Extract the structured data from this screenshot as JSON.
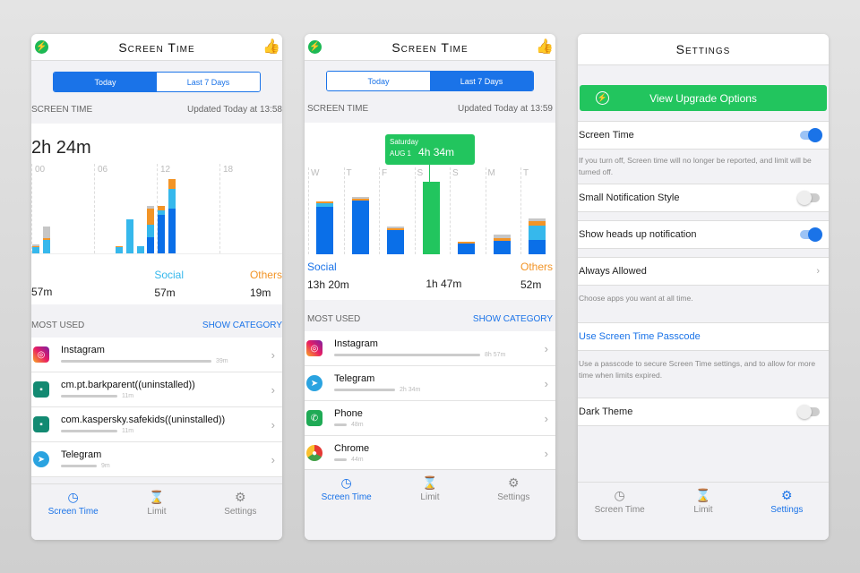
{
  "colors": {
    "primary": "#1a73e8",
    "social_dark": "#0a6fe8",
    "social_light": "#36b8ec",
    "others": "#f29427",
    "other_gray": "#c6c6c6",
    "green": "#22c55e"
  },
  "phone1": {
    "title": "Screen Time",
    "tabs": [
      "Today",
      "Last 7 Days"
    ],
    "active_tab": "Today",
    "section": "SCREEN TIME",
    "updated": "Updated Today at 13:58",
    "total": "2h 24m",
    "hour_labels": [
      "00",
      "06",
      "12",
      "18"
    ],
    "hourly_minutes": [
      {
        "hour": 0,
        "dark": 0,
        "light": 4,
        "orange": 1,
        "gray": 1
      },
      {
        "hour": 1,
        "dark": 0,
        "light": 9,
        "orange": 1,
        "gray": 8
      },
      {
        "hour": 8,
        "dark": 0,
        "light": 4,
        "orange": 1,
        "gray": 0
      },
      {
        "hour": 9,
        "dark": 0,
        "light": 23,
        "orange": 0,
        "gray": 0
      },
      {
        "hour": 10,
        "dark": 0,
        "light": 5,
        "orange": 0,
        "gray": 0
      },
      {
        "hour": 11,
        "dark": 11,
        "light": 8,
        "orange": 11,
        "gray": 2
      },
      {
        "hour": 12,
        "dark": 26,
        "light": 3,
        "orange": 3,
        "gray": 0
      },
      {
        "hour": 13,
        "dark": 30,
        "light": 13,
        "orange": 7,
        "gray": 0
      }
    ],
    "legend": [
      {
        "label": "",
        "value": "57m"
      },
      {
        "label": "Social",
        "value": "57m"
      },
      {
        "label": "Others",
        "value": "19m"
      }
    ],
    "most_used": "MOST USED",
    "show_category": "SHOW CATEGORY",
    "apps": [
      {
        "name": "Instagram",
        "time": "39m",
        "icon": "instagram-icon"
      },
      {
        "name": "cm.pt.barkparent((uninstalled))",
        "time": "11m",
        "icon": "android-icon"
      },
      {
        "name": "com.kaspersky.safekids((uninstalled))",
        "time": "11m",
        "icon": "android-icon"
      },
      {
        "name": "Telegram",
        "time": "9m",
        "icon": "telegram-icon"
      }
    ]
  },
  "phone2": {
    "title": "Screen Time",
    "tabs": [
      "Today",
      "Last 7 Days"
    ],
    "active_tab": "Last 7 Days",
    "section": "SCREEN TIME",
    "updated": "Updated Today at 13:59",
    "days": [
      "W",
      "T",
      "F",
      "S",
      "S",
      "M",
      "T"
    ],
    "daily_hours": [
      {
        "dark": 3.0,
        "light": 0.2,
        "orange": 0.05,
        "gray": 0
      },
      {
        "dark": 3.4,
        "light": 0,
        "orange": 0.1,
        "gray": 0.1
      },
      {
        "dark": 1.5,
        "light": 0,
        "orange": 0.05,
        "gray": 0.15
      },
      {
        "total": 4.57,
        "selected": true
      },
      {
        "dark": 0.7,
        "light": 0,
        "orange": 0.1,
        "gray": 0
      },
      {
        "dark": 0.85,
        "light": 0,
        "orange": 0.15,
        "gray": 0.25
      },
      {
        "dark": 0.9,
        "light": 0.9,
        "orange": 0.3,
        "gray": 0.15
      }
    ],
    "tooltip": {
      "day": "Saturday",
      "date": "AUG 1",
      "value": "4h 34m"
    },
    "legend": [
      {
        "label": "Social",
        "value": "13h 20m"
      },
      {
        "label": "",
        "value": "1h 47m"
      },
      {
        "label": "Others",
        "value": "52m"
      }
    ],
    "most_used": "MOST USED",
    "show_category": "SHOW CATEGORY",
    "apps": [
      {
        "name": "Instagram",
        "time": "8h 57m",
        "icon": "instagram-icon"
      },
      {
        "name": "Telegram",
        "time": "2h 34m",
        "icon": "telegram-icon"
      },
      {
        "name": "Phone",
        "time": "48m",
        "icon": "phone-icon"
      },
      {
        "name": "Chrome",
        "time": "44m",
        "icon": "chrome-icon"
      }
    ]
  },
  "phone3": {
    "title": "Settings",
    "upgrade": "View Upgrade Options",
    "screen_time": {
      "label": "Screen Time",
      "on": true,
      "note": "If you turn off, Screen time will no longer be reported, and limit will be turned off."
    },
    "small_notif": {
      "label": "Small Notification Style",
      "on": false
    },
    "heads_up": {
      "label": "Show heads up notification",
      "on": true
    },
    "always_allowed": {
      "label": "Always Allowed",
      "note": "Choose apps you want at all time."
    },
    "passcode": {
      "label": "Use Screen Time Passcode",
      "note": "Use a passcode to secure Screen Time settings, and to allow for more time when limits expired."
    },
    "dark_theme": {
      "label": "Dark Theme",
      "on": false
    }
  },
  "tabbar": [
    {
      "label": "Screen Time",
      "icon": "clock-icon"
    },
    {
      "label": "Limit",
      "icon": "hourglass-icon"
    },
    {
      "label": "Settings",
      "icon": "gear-icon"
    }
  ]
}
